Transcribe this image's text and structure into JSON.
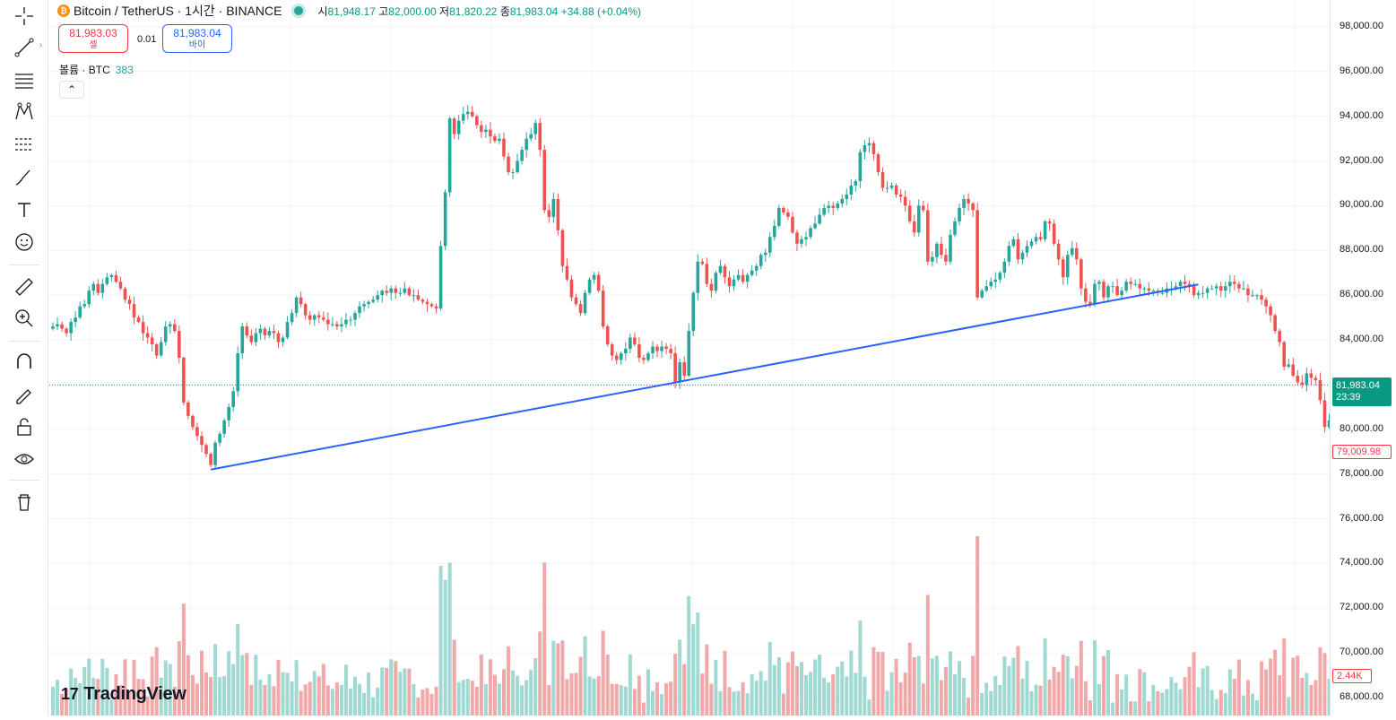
{
  "legend": {
    "coin_glyph": "₿",
    "symbol": "Bitcoin / TetherUS · 1시간 · BINANCE",
    "open_label": "시",
    "open_value": "81,948.17",
    "high_label": "고",
    "high_value": "82,000.00",
    "low_label": "저",
    "low_value": "81,820.22",
    "close_label": "종",
    "close_value": "81,983.04",
    "change": "+34.88 (+0.04%)"
  },
  "trade": {
    "sell_price": "81,983.03",
    "sell_label": "셀",
    "spread": "0.01",
    "buy_price": "81,983.04",
    "buy_label": "바이"
  },
  "volume_legend": {
    "label": "볼륨 · BTC",
    "value": "383"
  },
  "collapse_glyph": "⌃",
  "logo_mark": "17",
  "logo_text": "TradingView",
  "price_axis": {
    "ticks": [
      "98,000.00",
      "96,000.00",
      "94,000.00",
      "92,000.00",
      "90,000.00",
      "88,000.00",
      "86,000.00",
      "84,000.00",
      "82,000.00",
      "80,000.00",
      "78,000.00",
      "76,000.00",
      "74,000.00",
      "72,000.00",
      "70,000.00",
      "68,000.00"
    ],
    "tick_values": [
      98000,
      96000,
      94000,
      92000,
      90000,
      88000,
      86000,
      84000,
      82000,
      80000,
      78000,
      76000,
      74000,
      72000,
      70000,
      68000
    ],
    "current_price": "81,983.04",
    "countdown": "23:39",
    "low_marker": "79,009.98",
    "volume_marker": "2.44K"
  },
  "tools": [
    "crosshair-icon",
    "trend-line-icon",
    "fib-icon",
    "pattern-icon",
    "projection-icon",
    "brush-icon",
    "text-icon",
    "emoji-icon",
    "ruler-icon",
    "zoom-icon",
    "magnet-icon",
    "lock-draw-icon",
    "lock-icon",
    "eye-icon",
    "trash-icon"
  ],
  "colors": {
    "up": "#26a69a",
    "down": "#ef5350",
    "up_volume": "#9fd9d1",
    "down_volume": "#f0a8a8",
    "trendline": "#2962ff",
    "current_price_line": "#089981"
  },
  "chart_data": {
    "type": "candlestick",
    "price_range": [
      67200,
      99200
    ],
    "trendline": {
      "from_price": 78200,
      "to_price": 86480
    },
    "current_price_value": 81983.04,
    "closes": [
      84600,
      84700,
      84500,
      84300,
      84800,
      85000,
      85500,
      85600,
      86200,
      86500,
      86100,
      86500,
      86800,
      86900,
      86600,
      86300,
      85800,
      85600,
      85000,
      84800,
      84300,
      84100,
      83800,
      83300,
      83900,
      84600,
      84700,
      84400,
      83200,
      81200,
      80600,
      80100,
      79700,
      79300,
      78900,
      78400,
      79400,
      79800,
      80400,
      81000,
      81700,
      83400,
      84600,
      84200,
      83900,
      84300,
      84500,
      84200,
      84400,
      84300,
      83900,
      84100,
      84800,
      85200,
      85900,
      85600,
      85100,
      84900,
      85100,
      85000,
      84900,
      84700,
      84700,
      84600,
      84700,
      84900,
      84900,
      85200,
      85500,
      85600,
      85700,
      85800,
      86000,
      86200,
      86100,
      86300,
      86100,
      86100,
      86300,
      86000,
      86000,
      85800,
      85700,
      85600,
      85500,
      85400,
      88200,
      90600,
      93900,
      93200,
      93800,
      94100,
      94200,
      94000,
      93600,
      93300,
      93400,
      93100,
      92900,
      93000,
      92200,
      91500,
      91500,
      92000,
      92500,
      93000,
      93200,
      93700,
      92500,
      89800,
      89500,
      90300,
      88900,
      87300,
      86700,
      85900,
      85600,
      85200,
      86100,
      86700,
      86900,
      86200,
      84600,
      83800,
      83300,
      83100,
      83400,
      83600,
      84100,
      83800,
      83200,
      83100,
      83400,
      83700,
      83500,
      83700,
      83600,
      83400,
      82100,
      83000,
      82400,
      84400,
      86100,
      87500,
      87400,
      86500,
      86200,
      87000,
      87300,
      86800,
      86400,
      86700,
      86900,
      86600,
      86900,
      87100,
      87300,
      87800,
      87900,
      88600,
      89100,
      89900,
      89700,
      89500,
      88800,
      88300,
      88500,
      88600,
      89000,
      89200,
      89600,
      89900,
      90000,
      89900,
      90100,
      90300,
      90500,
      90900,
      91100,
      92400,
      92700,
      92800,
      92300,
      91500,
      90800,
      90800,
      90900,
      90500,
      90400,
      90000,
      89300,
      88800,
      90000,
      89800,
      87500,
      87700,
      88300,
      87800,
      87500,
      88700,
      89300,
      89900,
      90300,
      90100,
      89800,
      85900,
      86200,
      86400,
      86600,
      86700,
      87000,
      87500,
      88200,
      88500,
      87600,
      87900,
      88200,
      88400,
      88600,
      88500,
      89300,
      89200,
      88300,
      87600,
      86800,
      87800,
      88100,
      87600,
      86300,
      85700,
      85600,
      86500,
      86600,
      85900,
      86400,
      86400,
      86000,
      86200,
      86600,
      86500,
      86500,
      86300,
      86300,
      86200,
      86200,
      86100,
      86100,
      86300,
      86300,
      86400,
      86600,
      86500,
      86400,
      86000,
      86100,
      86100,
      86300,
      86300,
      86400,
      86200,
      86400,
      86600,
      86500,
      86300,
      86300,
      86000,
      86000,
      86000,
      85800,
      85500,
      85100,
      84400,
      83900,
      82800,
      82900,
      82400,
      82100,
      82000,
      82500,
      82300,
      82200,
      81300,
      80100,
      80400,
      81000,
      81400,
      81900,
      82200,
      82000,
      82700,
      82200,
      82700,
      82000,
      81300,
      83300,
      82800,
      82000,
      80000
    ]
  }
}
